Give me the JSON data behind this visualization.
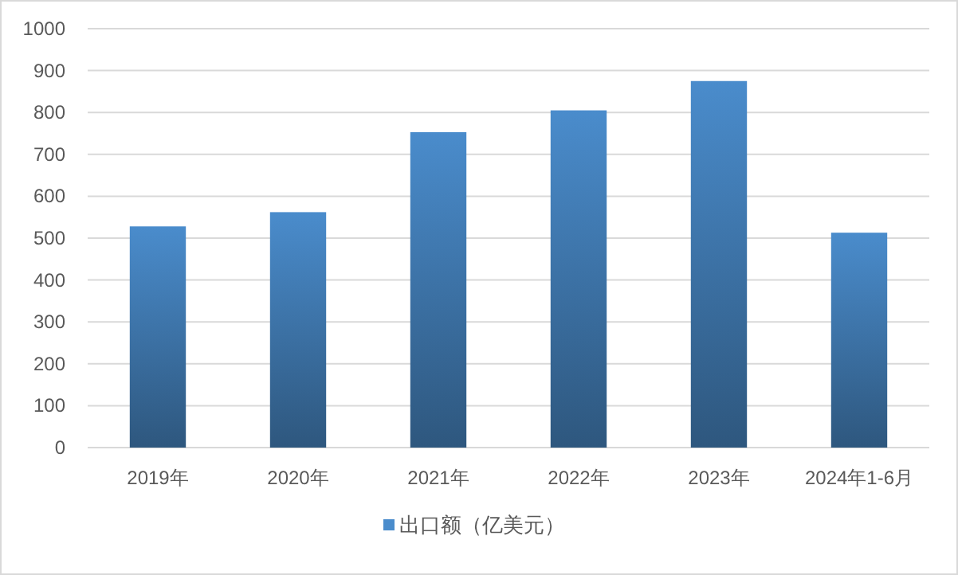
{
  "chart_data": {
    "type": "bar",
    "categories": [
      "2019年",
      "2020年",
      "2021年",
      "2022年",
      "2023年",
      "2024年1-6月"
    ],
    "series": [
      {
        "name": "出口额（亿美元）",
        "color": "#4a8ccc",
        "values": [
          528,
          562,
          753,
          805,
          875,
          513
        ]
      }
    ],
    "ylim": [
      0,
      1000
    ],
    "yticks": [
      0,
      100,
      200,
      300,
      400,
      500,
      600,
      700,
      800,
      900,
      1000
    ],
    "grid": "y",
    "legend": "bottom"
  }
}
